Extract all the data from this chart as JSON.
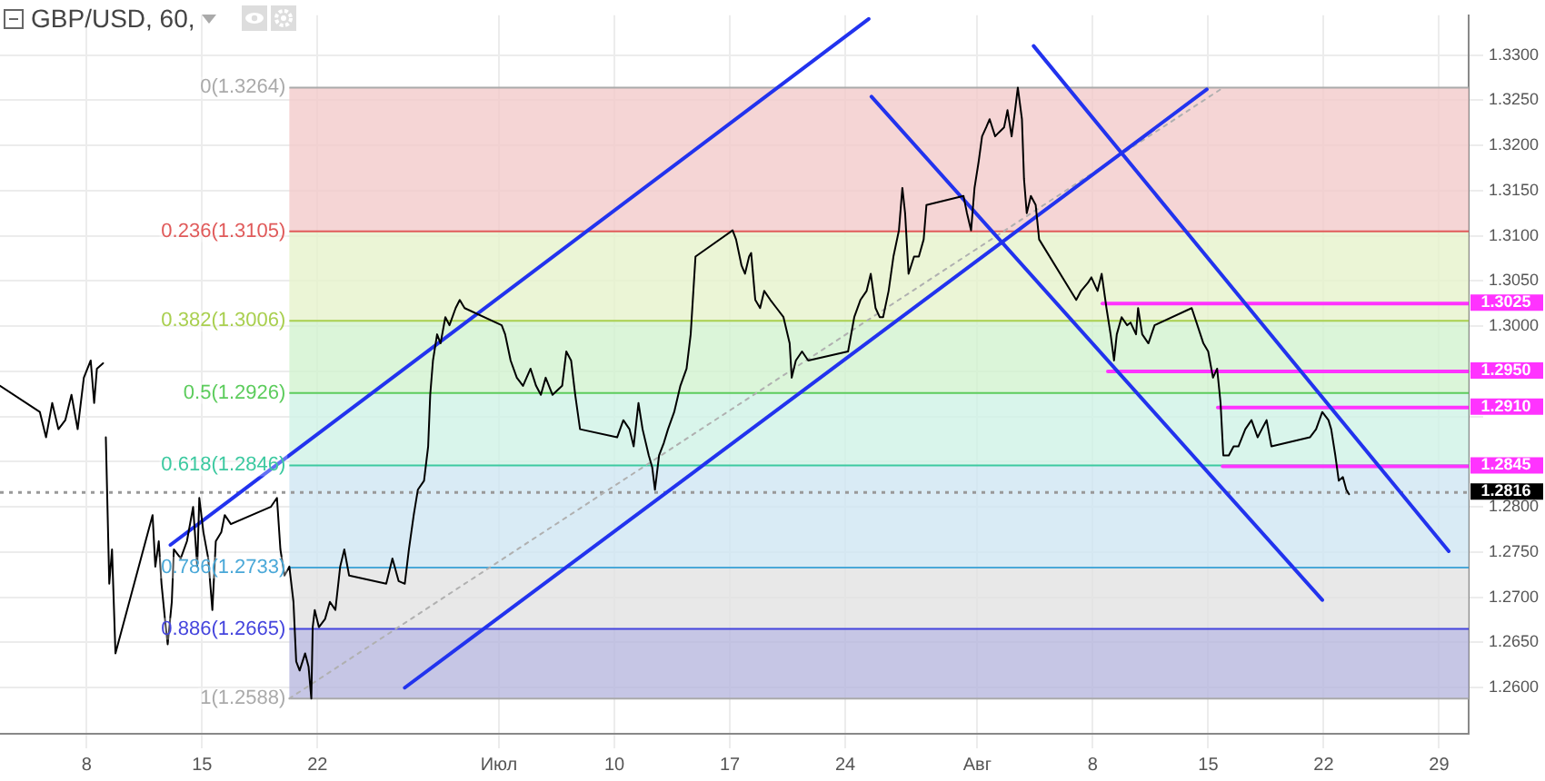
{
  "chart_data": {
    "type": "line",
    "title": "GBP/USD, 60,",
    "xlim": [
      "--06-02T18:00",
      "--08-30T19:00"
    ],
    "ylim": [
      1.2549,
      1.3344
    ],
    "xticks": [
      {
        "value": "--06-08",
        "label": "8"
      },
      {
        "value": "--06-15",
        "label": "15"
      },
      {
        "value": "--06-22",
        "label": "22"
      },
      {
        "value": "--07-03",
        "label": "Июл"
      },
      {
        "value": "--07-10",
        "label": "10"
      },
      {
        "value": "--07-17",
        "label": "17"
      },
      {
        "value": "--07-24",
        "label": "24"
      },
      {
        "value": "--08-01",
        "label": "Авг"
      },
      {
        "value": "--08-08",
        "label": "8"
      },
      {
        "value": "--08-15",
        "label": "15"
      },
      {
        "value": "--08-22",
        "label": "22"
      },
      {
        "value": "--08-29",
        "label": "29"
      }
    ],
    "yticks": [
      {
        "value": 1.26,
        "label": "1.2600"
      },
      {
        "value": 1.265,
        "label": "1.2650"
      },
      {
        "value": 1.27,
        "label": "1.2700"
      },
      {
        "value": 1.275,
        "label": "1.2750"
      },
      {
        "value": 1.28,
        "label": "1.2800"
      },
      {
        "value": 1.285,
        "label": null
      },
      {
        "value": 1.29,
        "label": null
      },
      {
        "value": 1.295,
        "label": null
      },
      {
        "value": 1.3,
        "label": "1.3000"
      },
      {
        "value": 1.305,
        "label": "1.3050"
      },
      {
        "value": 1.31,
        "label": "1.3100"
      },
      {
        "value": 1.315,
        "label": "1.3150"
      },
      {
        "value": 1.32,
        "label": "1.3200"
      },
      {
        "value": 1.325,
        "label": "1.3250"
      },
      {
        "value": 1.33,
        "label": "1.3300"
      }
    ],
    "grid": true,
    "legend": false,
    "series": [
      {
        "color": "#000000",
        "x": [
          "--06-02T18:00",
          "--06-05T04:00",
          "--06-05T13:00",
          "--06-05T22:00",
          "--06-06T07:00",
          "--06-06T17:00",
          "--06-07T02:00",
          "--06-07T11:00",
          "--06-07T20:00",
          "--06-08T06:00",
          "--06-08T11:00",
          "--06-08T15:00",
          "--06-09T00:00",
          "--06-09T02:00",
          "--06-09T04:00",
          "--06-09T09:00",
          "--06-09T13:00",
          "--06-09T18:00",
          "--06-12T00:00",
          "--06-12T04:00",
          "--06-12T09:00",
          "--06-12T13:00",
          "--06-12T18:00",
          "--06-12T22:00",
          "--06-13T04:00",
          "--06-13T07:00",
          "--06-13T17:00",
          "--06-14T02:00",
          "--06-14T11:00",
          "--06-14T17:00",
          "--06-14T20:00",
          "--06-15T02:00",
          "--06-15T09:00",
          "--06-15T15:00",
          "--06-15T20:00",
          "--06-16T04:00",
          "--06-16T09:00",
          "--06-16T18:00",
          "--06-19T04:00",
          "--06-19T13:00",
          "--06-19T18:00",
          "--06-20T00:00",
          "--06-20T07:00",
          "--06-20T13:00",
          "--06-20T17:00",
          "--06-20T22:00",
          "--06-21T06:00",
          "--06-21T11:00",
          "--06-21T15:00",
          "--06-21T17:00",
          "--06-21T20:00",
          "--06-22T02:00",
          "--06-22T11:00",
          "--06-22T18:00",
          "--06-23T02:00",
          "--06-23T09:00",
          "--06-23T15:00",
          "--06-23T22:00",
          "--06-26T04:00",
          "--06-26T13:00",
          "--06-26T22:00",
          "--06-27T07:00",
          "--06-27T13:00",
          "--06-27T20:00",
          "--06-28T02:00",
          "--06-28T11:00",
          "--06-28T17:00",
          "--06-28T20:00",
          "--06-29T00:00",
          "--06-29T06:00",
          "--06-29T11:00",
          "--06-29T18:00",
          "--06-30T00:00",
          "--06-30T09:00",
          "--06-30T15:00",
          "--06-30T22:00",
          "--07-03T04:00",
          "--07-03T09:00",
          "--07-03T17:00",
          "--07-04T02:00",
          "--07-04T11:00",
          "--07-04T22:00",
          "--07-05T06:00",
          "--07-05T13:00",
          "--07-05T20:00",
          "--07-06T06:00",
          "--07-06T20:00",
          "--07-07T02:00",
          "--07-07T09:00",
          "--07-07T15:00",
          "--07-07T22:00",
          "--07-10T04:00",
          "--07-10T13:00",
          "--07-10T22:00",
          "--07-11T04:00",
          "--07-11T11:00",
          "--07-11T17:00",
          "--07-12T02:00",
          "--07-12T07:00",
          "--07-12T11:00",
          "--07-12T17:00",
          "--07-13T00:00",
          "--07-13T06:00",
          "--07-13T15:00",
          "--07-14T00:00",
          "--07-14T09:00",
          "--07-14T15:00",
          "--07-14T22:00",
          "--07-17T04:00",
          "--07-17T09:00",
          "--07-17T17:00",
          "--07-17T22:00",
          "--07-18T04:00",
          "--07-18T07:00",
          "--07-18T13:00",
          "--07-18T20:00",
          "--07-19T02:00",
          "--07-19T11:00",
          "--07-19T20:00",
          "--07-20T06:00",
          "--07-20T15:00",
          "--07-20T18:00",
          "--07-21T00:00",
          "--07-21T09:00",
          "--07-21T18:00",
          "--07-24T04:00",
          "--07-24T13:00",
          "--07-24T22:00",
          "--07-25T07:00",
          "--07-25T13:00",
          "--07-25T20:00",
          "--07-26T02:00",
          "--07-26T07:00",
          "--07-26T15:00",
          "--07-26T22:00",
          "--07-27T06:00",
          "--07-27T11:00",
          "--07-27T15:00",
          "--07-27T20:00",
          "--07-28T04:00",
          "--07-28T11:00",
          "--07-28T18:00",
          "--07-28T22:00",
          "--07-31T04:00",
          "--07-31T09:00",
          "--07-31T15:00",
          "--07-31T20:00",
          "--08-01T02:00",
          "--08-01T07:00",
          "--08-01T13:00",
          "--08-01T18:00",
          "--08-02T02:00",
          "--08-02T07:00",
          "--08-02T15:00",
          "--08-02T20:00",
          "--08-03T02:00",
          "--08-03T07:00",
          "--08-03T11:00",
          "--08-03T17:00",
          "--08-03T20:00",
          "--08-04T00:00",
          "--08-04T06:00",
          "--08-04T13:00",
          "--08-04T18:00",
          "--08-07T00:00",
          "--08-07T07:00",
          "--08-07T17:00",
          "--08-07T22:00",
          "--08-08T07:00",
          "--08-08T13:00",
          "--08-08T20:00",
          "--08-09T02:00",
          "--08-09T07:00",
          "--08-09T11:00",
          "--08-09T18:00",
          "--08-10T02:00",
          "--08-10T07:00",
          "--08-10T15:00",
          "--08-10T18:00",
          "--08-11T00:00",
          "--08-11T09:00",
          "--08-11T18:00",
          "--08-14T00:00",
          "--08-14T07:00",
          "--08-14T17:00",
          "--08-15T00:00",
          "--08-15T07:00",
          "--08-15T13:00",
          "--08-15T18:00",
          "--08-15T22:00",
          "--08-16T06:00",
          "--08-16T13:00",
          "--08-16T20:00",
          "--08-17T06:00",
          "--08-17T15:00",
          "--08-18T00:00",
          "--08-18T06:00",
          "--08-18T13:00",
          "--08-18T20:00",
          "--08-21T04:00",
          "--08-21T13:00",
          "--08-21T22:00",
          "--08-22T07:00",
          "--08-22T11:00",
          "--08-22T17:00",
          "--08-22T22:00",
          "--08-23T04:00",
          "--08-23T09:00",
          "--08-23T13:00"
        ],
        "values": [
          1.2934,
          1.2905,
          1.2877,
          1.2915,
          1.2886,
          1.2896,
          1.2924,
          1.2886,
          1.2943,
          1.2962,
          1.2915,
          1.2953,
          1.2959,
          null,
          1.2877,
          1.2715,
          1.2753,
          1.2638,
          1.2791,
          1.2734,
          1.2762,
          1.2715,
          1.2676,
          1.2648,
          1.2695,
          1.2753,
          1.2743,
          1.2762,
          1.28,
          1.2734,
          1.281,
          1.2772,
          1.2743,
          1.2686,
          1.2762,
          1.2772,
          1.2791,
          1.2781,
          1.28,
          1.281,
          1.2753,
          1.2724,
          1.2734,
          1.2695,
          1.2629,
          1.2619,
          1.2638,
          1.2623,
          1.2588,
          1.2667,
          1.2686,
          1.2667,
          1.2676,
          1.2695,
          1.2686,
          1.2734,
          1.2753,
          1.2724,
          1.2715,
          1.2743,
          1.2718,
          1.2715,
          1.2753,
          1.2791,
          1.2819,
          1.2829,
          1.2867,
          1.2924,
          1.2962,
          1.2991,
          1.2981,
          1.301,
          1.3001,
          1.302,
          1.3029,
          1.302,
          1.3001,
          1.2991,
          1.2962,
          1.2943,
          1.2934,
          1.2953,
          1.2934,
          1.2924,
          1.2943,
          1.2924,
          1.2934,
          1.2972,
          1.2962,
          1.2924,
          1.2886,
          1.2877,
          1.2896,
          1.2886,
          1.2867,
          1.2915,
          1.2886,
          1.2857,
          1.2844,
          1.2819,
          1.2857,
          1.2871,
          1.2886,
          1.2905,
          1.2934,
          1.2953,
          1.2991,
          1.3077,
          1.3106,
          1.3096,
          1.3067,
          1.3058,
          1.3077,
          1.3081,
          1.3029,
          1.302,
          1.3039,
          1.3029,
          1.302,
          1.301,
          1.2981,
          1.2943,
          1.2962,
          1.2972,
          1.2962,
          1.2972,
          1.301,
          1.3029,
          1.3039,
          1.3058,
          1.302,
          1.301,
          1.301,
          1.3039,
          1.3077,
          1.3106,
          1.3153,
          1.3125,
          1.3058,
          1.3077,
          1.3077,
          1.3096,
          1.3134,
          1.3144,
          1.3125,
          1.3106,
          1.3153,
          1.3182,
          1.321,
          1.322,
          1.3229,
          1.321,
          1.3214,
          1.322,
          1.3239,
          1.321,
          1.3239,
          1.3264,
          1.3229,
          1.3163,
          1.3125,
          1.3144,
          1.3134,
          1.3096,
          1.3029,
          1.3039,
          1.3048,
          1.3054,
          1.3039,
          1.3058,
          1.302,
          1.2991,
          1.2962,
          1.2991,
          1.301,
          1.3001,
          1.3004,
          1.2991,
          1.302,
          1.2991,
          1.2981,
          1.3001,
          1.302,
          1.3004,
          1.2981,
          1.2972,
          1.2943,
          1.2953,
          1.2915,
          1.2857,
          1.2857,
          1.2867,
          1.2867,
          1.2886,
          1.2896,
          1.2877,
          1.2886,
          1.2896,
          1.2867,
          1.2877,
          1.2886,
          1.2905,
          1.2896,
          1.2886,
          1.2857,
          1.2829,
          1.2833,
          1.2819,
          1.2814
        ]
      },
      {
        "color": "#2233ee",
        "x": [
          "--06-13T02:00",
          "--07-25T10:00"
        ],
        "values": [
          1.2758,
          1.334
        ]
      },
      {
        "color": "#2233ee",
        "x": [
          "--06-27T07:00",
          "--08-14T22:00"
        ],
        "values": [
          1.26,
          1.3262
        ]
      },
      {
        "color": "#2233ee",
        "x": [
          "--08-04T10:00",
          "--08-29T14:00"
        ],
        "values": [
          1.331,
          1.2751
        ]
      },
      {
        "color": "#2233ee",
        "x": [
          "--07-25T14:00",
          "--08-21T22:00"
        ],
        "values": [
          1.3254,
          1.2697
        ]
      },
      {
        "color": "#b0b0b0",
        "line_style": "dotted",
        "x": [
          "--06-20T07:00",
          "--08-15T22:00"
        ],
        "values": [
          1.2588,
          1.3264
        ]
      },
      {
        "color": "#ff33ff",
        "x": [
          "--08-08T14:00",
          "--08-30T19:00"
        ],
        "values": [
          1.3025,
          1.3025
        ]
      },
      {
        "color": "#ff33ff",
        "x": [
          "--08-08T22:00",
          "--08-30T19:00"
        ],
        "values": [
          1.295,
          1.295
        ]
      },
      {
        "color": "#ff33ff",
        "x": [
          "--08-15T14:00",
          "--08-30T19:00"
        ],
        "values": [
          1.291,
          1.291
        ]
      },
      {
        "color": "#ff33ff",
        "x": [
          "--08-15T21:00",
          "--08-30T19:00"
        ],
        "values": [
          1.2845,
          1.2845
        ]
      }
    ],
    "bands": [
      {
        "axis": "y",
        "from": 1.3105,
        "to": 1.3264,
        "color": "#f2cbcb"
      },
      {
        "axis": "y",
        "from": 1.3006,
        "to": 1.3105,
        "color": "#e6f2cc"
      },
      {
        "axis": "y",
        "from": 1.2926,
        "to": 1.3006,
        "color": "#d2f2cf"
      },
      {
        "axis": "y",
        "from": 1.2846,
        "to": 1.2926,
        "color": "#cff2e6"
      },
      {
        "axis": "y",
        "from": 1.2733,
        "to": 1.2846,
        "color": "#d0e6f2"
      },
      {
        "axis": "y",
        "from": 1.2665,
        "to": 1.2733,
        "color": "#e2e2e2"
      },
      {
        "axis": "y",
        "from": 1.2588,
        "to": 1.2665,
        "color": "#b8b8de"
      }
    ],
    "ref_lines": [
      {
        "axis": "y",
        "value": 1.3264,
        "label": "0(1.3264)",
        "color": "#aaaaaa"
      },
      {
        "axis": "y",
        "value": 1.3105,
        "label": "0.236(1.3105)",
        "color": "#e05a5a"
      },
      {
        "axis": "y",
        "value": 1.3006,
        "label": "0.382(1.3006)",
        "color": "#a9cf4f"
      },
      {
        "axis": "y",
        "value": 1.2926,
        "label": "0.5(1.2926)",
        "color": "#5ccc5c"
      },
      {
        "axis": "y",
        "value": 1.2846,
        "label": "0.618(1.2846)",
        "color": "#3cc9a0"
      },
      {
        "axis": "y",
        "value": 1.2733,
        "label": "0.786(1.2733)",
        "color": "#4aa8d8"
      },
      {
        "axis": "y",
        "value": 1.2665,
        "label": "0.886(1.2665)",
        "color": "#4444dd"
      },
      {
        "axis": "y",
        "value": 1.2588,
        "label": "1(1.2588)",
        "color": "#aaaaaa"
      },
      {
        "axis": "y",
        "value": 1.2816,
        "label": "1.2816",
        "color": "#999999",
        "line_style": "dotted"
      }
    ],
    "annotations": [
      {
        "text": "1.3025",
        "x": "--08-30T19:00",
        "y": 1.3025
      },
      {
        "text": "1.2950",
        "x": "--08-30T19:00",
        "y": 1.295
      },
      {
        "text": "1.2910",
        "x": "--08-30T19:00",
        "y": 1.291
      },
      {
        "text": "1.2845",
        "x": "--08-30T19:00",
        "y": 1.2845
      }
    ]
  }
}
